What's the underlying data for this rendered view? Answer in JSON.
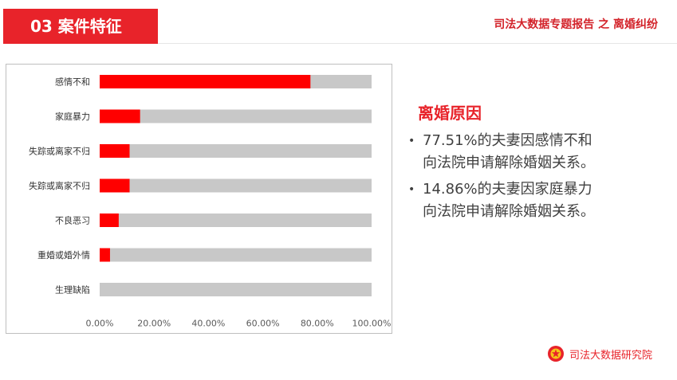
{
  "header": {
    "section_label": "03  案件特征",
    "report_title": "司法大数据专题报告 之 离婚纠纷"
  },
  "summary": {
    "heading": "离婚原因",
    "bullets": [
      {
        "line1": "77.51%的夫妻因感情不和",
        "line2": "向法院申请解除婚姻关系。"
      },
      {
        "line1": "14.86%的夫妻因家庭暴力",
        "line2": "向法院申请解除婚姻关系。"
      }
    ]
  },
  "footer": {
    "brand_label": "司法大数据研究院",
    "logo_icon": "court-emblem-icon"
  },
  "colors": {
    "accent": "#e8232a",
    "bar_value": "#ff0000",
    "bar_track": "#c8c8c8"
  },
  "chart_data": {
    "type": "bar",
    "orientation": "horizontal",
    "stacked_to_100": true,
    "categories": [
      "感情不和",
      "家庭暴力",
      "失踪或离家不归",
      "失踪或离家不归",
      "不良恶习",
      "重婚或婚外情",
      "生理缺陷"
    ],
    "values": [
      77.51,
      14.86,
      11.0,
      11.0,
      7.0,
      3.8,
      0.0
    ],
    "xlim": [
      0,
      100
    ],
    "xticks": [
      0,
      20,
      40,
      60,
      80,
      100
    ],
    "xtick_labels": [
      "0.00%",
      "20.00%",
      "40.00%",
      "60.00%",
      "80.00%",
      "100.00%"
    ],
    "grid": false,
    "legend": "none"
  }
}
